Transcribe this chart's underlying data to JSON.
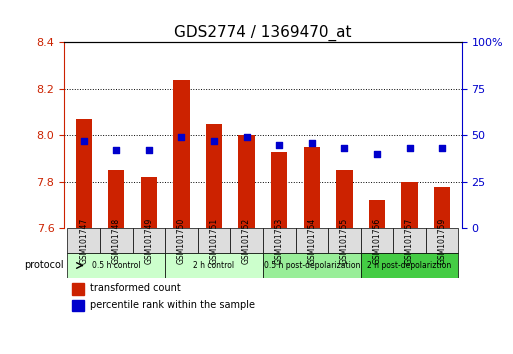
{
  "title": "GDS2774 / 1369470_at",
  "samples": [
    "GSM101747",
    "GSM101748",
    "GSM101749",
    "GSM101750",
    "GSM101751",
    "GSM101752",
    "GSM101753",
    "GSM101754",
    "GSM101755",
    "GSM101756",
    "GSM101757",
    "GSM101759"
  ],
  "transformed_count": [
    8.07,
    7.85,
    7.82,
    8.24,
    8.05,
    8.0,
    7.93,
    7.95,
    7.85,
    7.72,
    7.8,
    7.78
  ],
  "percentile_rank": [
    47,
    42,
    42,
    49,
    47,
    49,
    45,
    46,
    43,
    40,
    43,
    43
  ],
  "ylim_left": [
    7.6,
    8.4
  ],
  "ylim_right": [
    0,
    100
  ],
  "yticks_left": [
    7.6,
    7.8,
    8.0,
    8.2,
    8.4
  ],
  "yticks_right": [
    0,
    25,
    50,
    75,
    100
  ],
  "bar_color": "#cc2200",
  "dot_color": "#0000cc",
  "bg_color": "#ffffff",
  "grid_color": "#000000",
  "protocol_groups": [
    {
      "label": "0.5 h control",
      "start": 0,
      "end": 3,
      "color": "#ccffcc"
    },
    {
      "label": "2 h control",
      "start": 3,
      "end": 6,
      "color": "#ccffcc"
    },
    {
      "label": "0.5 h post-depolarization",
      "start": 6,
      "end": 9,
      "color": "#99ee99"
    },
    {
      "label": "2 h post-depolariztion",
      "start": 9,
      "end": 12,
      "color": "#44cc44"
    }
  ],
  "legend_items": [
    {
      "label": "transformed count",
      "color": "#cc2200"
    },
    {
      "label": "percentile rank within the sample",
      "color": "#0000cc"
    }
  ],
  "bar_width": 0.5,
  "xlabel_color": "#cc2200",
  "ylabel_left_color": "#cc2200",
  "ylabel_right_color": "#0000cc"
}
